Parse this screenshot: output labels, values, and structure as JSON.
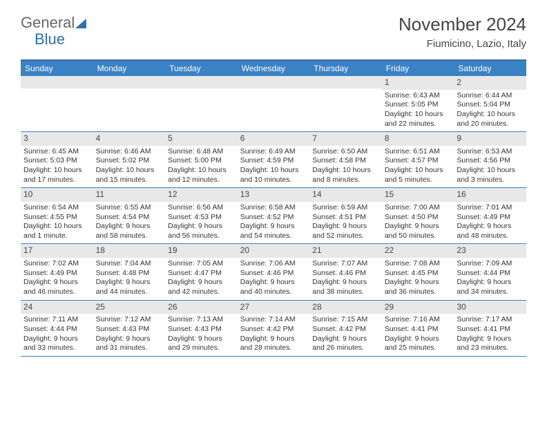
{
  "logo": {
    "part1": "General",
    "part2": "Blue"
  },
  "title": "November 2024",
  "location": "Fiumicino, Lazio, Italy",
  "colors": {
    "header_bar": "#3b82c4",
    "accent": "#2f6fae",
    "day_num_bg": "#e8e8e8",
    "text": "#333333"
  },
  "dow": [
    "Sunday",
    "Monday",
    "Tuesday",
    "Wednesday",
    "Thursday",
    "Friday",
    "Saturday"
  ],
  "weeks": [
    [
      {
        "n": "",
        "sr": "",
        "ss": "",
        "dl": ""
      },
      {
        "n": "",
        "sr": "",
        "ss": "",
        "dl": ""
      },
      {
        "n": "",
        "sr": "",
        "ss": "",
        "dl": ""
      },
      {
        "n": "",
        "sr": "",
        "ss": "",
        "dl": ""
      },
      {
        "n": "",
        "sr": "",
        "ss": "",
        "dl": ""
      },
      {
        "n": "1",
        "sr": "Sunrise: 6:43 AM",
        "ss": "Sunset: 5:05 PM",
        "dl": "Daylight: 10 hours and 22 minutes."
      },
      {
        "n": "2",
        "sr": "Sunrise: 6:44 AM",
        "ss": "Sunset: 5:04 PM",
        "dl": "Daylight: 10 hours and 20 minutes."
      }
    ],
    [
      {
        "n": "3",
        "sr": "Sunrise: 6:45 AM",
        "ss": "Sunset: 5:03 PM",
        "dl": "Daylight: 10 hours and 17 minutes."
      },
      {
        "n": "4",
        "sr": "Sunrise: 6:46 AM",
        "ss": "Sunset: 5:02 PM",
        "dl": "Daylight: 10 hours and 15 minutes."
      },
      {
        "n": "5",
        "sr": "Sunrise: 6:48 AM",
        "ss": "Sunset: 5:00 PM",
        "dl": "Daylight: 10 hours and 12 minutes."
      },
      {
        "n": "6",
        "sr": "Sunrise: 6:49 AM",
        "ss": "Sunset: 4:59 PM",
        "dl": "Daylight: 10 hours and 10 minutes."
      },
      {
        "n": "7",
        "sr": "Sunrise: 6:50 AM",
        "ss": "Sunset: 4:58 PM",
        "dl": "Daylight: 10 hours and 8 minutes."
      },
      {
        "n": "8",
        "sr": "Sunrise: 6:51 AM",
        "ss": "Sunset: 4:57 PM",
        "dl": "Daylight: 10 hours and 5 minutes."
      },
      {
        "n": "9",
        "sr": "Sunrise: 6:53 AM",
        "ss": "Sunset: 4:56 PM",
        "dl": "Daylight: 10 hours and 3 minutes."
      }
    ],
    [
      {
        "n": "10",
        "sr": "Sunrise: 6:54 AM",
        "ss": "Sunset: 4:55 PM",
        "dl": "Daylight: 10 hours and 1 minute."
      },
      {
        "n": "11",
        "sr": "Sunrise: 6:55 AM",
        "ss": "Sunset: 4:54 PM",
        "dl": "Daylight: 9 hours and 58 minutes."
      },
      {
        "n": "12",
        "sr": "Sunrise: 6:56 AM",
        "ss": "Sunset: 4:53 PM",
        "dl": "Daylight: 9 hours and 56 minutes."
      },
      {
        "n": "13",
        "sr": "Sunrise: 6:58 AM",
        "ss": "Sunset: 4:52 PM",
        "dl": "Daylight: 9 hours and 54 minutes."
      },
      {
        "n": "14",
        "sr": "Sunrise: 6:59 AM",
        "ss": "Sunset: 4:51 PM",
        "dl": "Daylight: 9 hours and 52 minutes."
      },
      {
        "n": "15",
        "sr": "Sunrise: 7:00 AM",
        "ss": "Sunset: 4:50 PM",
        "dl": "Daylight: 9 hours and 50 minutes."
      },
      {
        "n": "16",
        "sr": "Sunrise: 7:01 AM",
        "ss": "Sunset: 4:49 PM",
        "dl": "Daylight: 9 hours and 48 minutes."
      }
    ],
    [
      {
        "n": "17",
        "sr": "Sunrise: 7:02 AM",
        "ss": "Sunset: 4:49 PM",
        "dl": "Daylight: 9 hours and 46 minutes."
      },
      {
        "n": "18",
        "sr": "Sunrise: 7:04 AM",
        "ss": "Sunset: 4:48 PM",
        "dl": "Daylight: 9 hours and 44 minutes."
      },
      {
        "n": "19",
        "sr": "Sunrise: 7:05 AM",
        "ss": "Sunset: 4:47 PM",
        "dl": "Daylight: 9 hours and 42 minutes."
      },
      {
        "n": "20",
        "sr": "Sunrise: 7:06 AM",
        "ss": "Sunset: 4:46 PM",
        "dl": "Daylight: 9 hours and 40 minutes."
      },
      {
        "n": "21",
        "sr": "Sunrise: 7:07 AM",
        "ss": "Sunset: 4:46 PM",
        "dl": "Daylight: 9 hours and 38 minutes."
      },
      {
        "n": "22",
        "sr": "Sunrise: 7:08 AM",
        "ss": "Sunset: 4:45 PM",
        "dl": "Daylight: 9 hours and 36 minutes."
      },
      {
        "n": "23",
        "sr": "Sunrise: 7:09 AM",
        "ss": "Sunset: 4:44 PM",
        "dl": "Daylight: 9 hours and 34 minutes."
      }
    ],
    [
      {
        "n": "24",
        "sr": "Sunrise: 7:11 AM",
        "ss": "Sunset: 4:44 PM",
        "dl": "Daylight: 9 hours and 33 minutes."
      },
      {
        "n": "25",
        "sr": "Sunrise: 7:12 AM",
        "ss": "Sunset: 4:43 PM",
        "dl": "Daylight: 9 hours and 31 minutes."
      },
      {
        "n": "26",
        "sr": "Sunrise: 7:13 AM",
        "ss": "Sunset: 4:43 PM",
        "dl": "Daylight: 9 hours and 29 minutes."
      },
      {
        "n": "27",
        "sr": "Sunrise: 7:14 AM",
        "ss": "Sunset: 4:42 PM",
        "dl": "Daylight: 9 hours and 28 minutes."
      },
      {
        "n": "28",
        "sr": "Sunrise: 7:15 AM",
        "ss": "Sunset: 4:42 PM",
        "dl": "Daylight: 9 hours and 26 minutes."
      },
      {
        "n": "29",
        "sr": "Sunrise: 7:16 AM",
        "ss": "Sunset: 4:41 PM",
        "dl": "Daylight: 9 hours and 25 minutes."
      },
      {
        "n": "30",
        "sr": "Sunrise: 7:17 AM",
        "ss": "Sunset: 4:41 PM",
        "dl": "Daylight: 9 hours and 23 minutes."
      }
    ]
  ]
}
